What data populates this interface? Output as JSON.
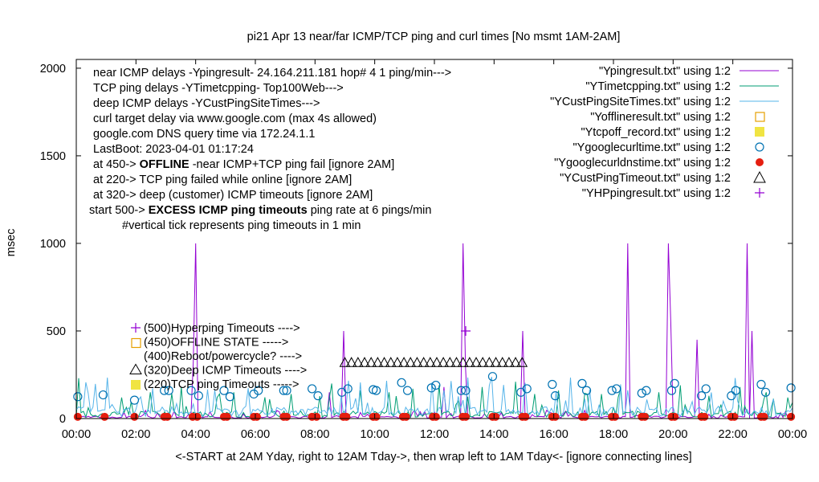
{
  "chart_data": {
    "type": "line",
    "title": "pi21 Apr 13  near/far ICMP/TCP ping and curl times [No msmt 1AM-2AM]",
    "xlabel": "<-START at 2AM Yday, right to 12AM Tday->, then wrap left to 1AM Tday<- [ignore connecting lines]",
    "ylabel": "msec",
    "xlim": [
      "00:00",
      "00:00"
    ],
    "ylim": [
      0,
      2050
    ],
    "x_ticks": [
      "00:00",
      "02:00",
      "04:00",
      "06:00",
      "08:00",
      "10:00",
      "12:00",
      "14:00",
      "16:00",
      "18:00",
      "20:00",
      "22:00",
      "00:00"
    ],
    "y_ticks": [
      "0",
      "500",
      "1000",
      "1500",
      "2000"
    ],
    "grid": false,
    "legend_position": "top-right",
    "notes": [
      {
        "text": "near ICMP delays -Ypingresult- 24.164.211.181 hop# 4 1 ping/min--->"
      },
      {
        "text": "TCP ping delays -YTimetcpping- Top100Web--->"
      },
      {
        "text": "deep ICMP delays -YCustPingSiteTimes--->"
      },
      {
        "text": "curl target delay via www.google.com (max 4s allowed)"
      },
      {
        "text": "google.com DNS query time via 172.24.1.1"
      },
      {
        "text": "LastBoot: 2023-04-01 01:17:24"
      },
      {
        "prefix": "at 450-> ",
        "bold": "OFFLINE",
        "suffix": " -near ICMP+TCP ping fail [ignore 2AM]"
      },
      {
        "text": "at 220-> TCP ping failed while online [ignore 2AM]"
      },
      {
        "text": "at 320-> deep (customer) ICMP timeouts [ignore 2AM]"
      },
      {
        "prefix": "start 500-> ",
        "bold": "EXCESS ICMP ping timeouts",
        "suffix": " ping rate at 6 pings/min"
      },
      {
        "text": "#vertical tick represents ping timeouts in 1 min"
      }
    ],
    "key_labels": [
      {
        "text": "(500)Hyperping Timeouts ---->",
        "marker": "plus"
      },
      {
        "text": "(450)OFFLINE STATE ----->",
        "marker": "open-square"
      },
      {
        "text": "(400)Reboot/powercycle? ---->",
        "marker": "none"
      },
      {
        "text": "(320)Deep ICMP Timeouts ---->",
        "marker": "triangle"
      },
      {
        "text": "(220)TCP ping Timeouts ----->",
        "marker": "filled-square"
      }
    ],
    "series": [
      {
        "name": "\"Ypingresult.txt\" using 1:2",
        "style": "line",
        "color": "#9400d3",
        "baseline": 8,
        "spikes": [
          [
            3.97,
            1000
          ],
          [
            3.9,
            320
          ],
          [
            8.97,
            1000
          ],
          [
            9.0,
            500
          ],
          [
            13.0,
            1000
          ],
          [
            13.05,
            300
          ],
          [
            14.97,
            1000
          ],
          [
            15.0,
            500
          ],
          [
            18.5,
            1000
          ],
          [
            19.83,
            1000
          ],
          [
            19.9,
            550
          ],
          [
            22.5,
            1000
          ],
          [
            22.6,
            500
          ],
          [
            20.8,
            450
          ],
          [
            8.5,
            150
          ],
          [
            12.3,
            180
          ]
        ]
      },
      {
        "name": "\"YTimetcpping.txt\" using 1:2",
        "style": "line",
        "color": "#009e73",
        "baseline": 25,
        "spikes": [
          [
            0.1,
            230
          ],
          [
            1.5,
            120
          ],
          [
            2.5,
            150
          ],
          [
            3.5,
            180
          ],
          [
            4.7,
            120
          ],
          [
            5.3,
            150
          ],
          [
            6.5,
            110
          ],
          [
            7.2,
            140
          ],
          [
            8.6,
            200
          ],
          [
            9.5,
            160
          ],
          [
            10.5,
            150
          ],
          [
            11.3,
            170
          ],
          [
            12.2,
            190
          ],
          [
            13.6,
            180
          ],
          [
            14.7,
            210
          ],
          [
            15.4,
            140
          ],
          [
            16.2,
            160
          ],
          [
            17.1,
            140
          ],
          [
            18.2,
            170
          ],
          [
            19.5,
            150
          ],
          [
            20.2,
            190
          ],
          [
            21.2,
            130
          ],
          [
            22.2,
            180
          ],
          [
            23.1,
            150
          ],
          [
            23.8,
            120
          ]
        ]
      },
      {
        "name": "\"YCustPingSiteTimes.txt\" using 1:2",
        "style": "line",
        "color": "#56b4e9",
        "baseline": 40,
        "spikes": [
          [
            1.2,
            80
          ],
          [
            5.7,
            70
          ],
          [
            9.8,
            90
          ],
          [
            17.5,
            80
          ],
          [
            21.5,
            70
          ]
        ]
      },
      {
        "name": "\"Yofflineresult.txt\" using 1:2",
        "style": "open-square",
        "color": "#e69f00",
        "points": []
      },
      {
        "name": "\"Ytcpoff_record.txt\" using 1:2",
        "style": "filled-square",
        "color": "#f0e442",
        "points": []
      },
      {
        "name": "\"Ygooglecurltime.txt\" using 1:2",
        "style": "open-circle",
        "color": "#0072b2",
        "points": [
          [
            0.05,
            125
          ],
          [
            0.9,
            135
          ],
          [
            1.95,
            105
          ],
          [
            2.95,
            160
          ],
          [
            3.1,
            160
          ],
          [
            3.85,
            160
          ],
          [
            4.1,
            130
          ],
          [
            4.95,
            160
          ],
          [
            5.15,
            125
          ],
          [
            5.95,
            140
          ],
          [
            6.1,
            160
          ],
          [
            6.95,
            160
          ],
          [
            7.05,
            160
          ],
          [
            7.9,
            170
          ],
          [
            8.1,
            130
          ],
          [
            8.9,
            150
          ],
          [
            9.1,
            170
          ],
          [
            9.95,
            165
          ],
          [
            10.05,
            160
          ],
          [
            10.9,
            205
          ],
          [
            11.1,
            160
          ],
          [
            11.9,
            175
          ],
          [
            12.05,
            190
          ],
          [
            12.9,
            160
          ],
          [
            13.05,
            160
          ],
          [
            13.95,
            240
          ],
          [
            14.9,
            150
          ],
          [
            15.1,
            170
          ],
          [
            15.95,
            195
          ],
          [
            16.05,
            130
          ],
          [
            16.95,
            200
          ],
          [
            17.1,
            160
          ],
          [
            17.95,
            160
          ],
          [
            18.1,
            170
          ],
          [
            18.95,
            145
          ],
          [
            19.1,
            160
          ],
          [
            19.95,
            160
          ],
          [
            20.05,
            200
          ],
          [
            20.95,
            130
          ],
          [
            21.1,
            170
          ],
          [
            21.95,
            130
          ],
          [
            22.1,
            160
          ],
          [
            22.95,
            195
          ],
          [
            23.1,
            150
          ],
          [
            23.95,
            175
          ]
        ]
      },
      {
        "name": "\"Ygooglecurldnstime.txt\" using 1:2",
        "style": "filled-circle",
        "color": "#e51e10",
        "points_x": [
          0.05,
          0.95,
          1.95,
          2.95,
          3.05,
          3.9,
          4.05,
          4.95,
          5.05,
          5.95,
          6.05,
          6.95,
          7.05,
          7.9,
          8.05,
          8.95,
          9.05,
          9.95,
          10.05,
          10.95,
          11.05,
          11.95,
          12.05,
          12.95,
          13.05,
          13.95,
          14.05,
          14.95,
          15.05,
          15.95,
          16.05,
          16.95,
          17.05,
          17.95,
          18.05,
          18.95,
          19.05,
          19.95,
          20.05,
          20.95,
          21.05,
          21.95,
          22.05,
          22.95,
          23.05,
          23.95
        ],
        "value": 10
      },
      {
        "name": "\"YCustPingTimeout.txt\" using 1:2",
        "style": "triangle",
        "color": "#000000",
        "x_range": [
          9.0,
          15.0
        ],
        "value": 320
      },
      {
        "name": "\"YHPpingresult.txt\" using 1:2",
        "style": "plus",
        "color": "#9400d3",
        "points": [
          [
            13.05,
            500
          ]
        ]
      }
    ]
  }
}
